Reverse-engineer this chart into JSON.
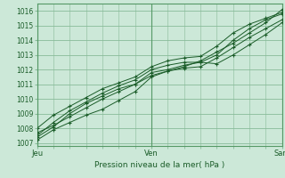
{
  "title": "",
  "xlabel": "Pression niveau de la mer( hPa )",
  "ylabel": "",
  "bg_color": "#cce8d8",
  "grid_color": "#88bb99",
  "line_color": "#1a5c28",
  "marker_color": "#1a5c28",
  "yticks": [
    1007,
    1008,
    1009,
    1010,
    1011,
    1012,
    1013,
    1014,
    1015,
    1016
  ],
  "ylim": [
    1006.8,
    1016.5
  ],
  "xlim": [
    0,
    90
  ],
  "day_ticks": [
    0,
    42,
    90
  ],
  "day_labels": [
    "Jeu",
    "Ven",
    "Sam"
  ],
  "series": [
    [
      0,
      1007.2,
      6,
      1007.9,
      12,
      1008.4,
      18,
      1008.9,
      24,
      1009.3,
      30,
      1009.9,
      36,
      1010.5,
      42,
      1011.5,
      48,
      1011.9,
      54,
      1012.2,
      60,
      1012.6,
      66,
      1013.2,
      72,
      1013.8,
      78,
      1014.5,
      84,
      1015.2,
      90,
      1016.1
    ],
    [
      0,
      1007.7,
      6,
      1008.2,
      12,
      1008.8,
      18,
      1009.4,
      24,
      1010.0,
      30,
      1010.5,
      36,
      1011.0,
      42,
      1011.8,
      48,
      1012.0,
      54,
      1012.3,
      60,
      1012.5,
      66,
      1013.0,
      72,
      1014.0,
      78,
      1014.8,
      84,
      1015.4,
      90,
      1015.8
    ],
    [
      0,
      1007.5,
      6,
      1008.4,
      12,
      1009.2,
      18,
      1009.8,
      24,
      1010.4,
      30,
      1010.9,
      36,
      1011.3,
      42,
      1012.0,
      48,
      1012.3,
      54,
      1012.5,
      60,
      1012.5,
      66,
      1012.4,
      72,
      1013.0,
      78,
      1013.7,
      84,
      1014.4,
      90,
      1015.2
    ],
    [
      0,
      1008.0,
      6,
      1008.9,
      12,
      1009.5,
      18,
      1010.1,
      24,
      1010.7,
      30,
      1011.1,
      36,
      1011.5,
      42,
      1012.2,
      48,
      1012.6,
      54,
      1012.8,
      60,
      1012.9,
      66,
      1013.6,
      72,
      1014.5,
      78,
      1015.1,
      84,
      1015.5,
      90,
      1015.9
    ],
    [
      0,
      1007.4,
      6,
      1008.1,
      12,
      1009.0,
      18,
      1009.7,
      24,
      1010.2,
      30,
      1010.7,
      36,
      1011.0,
      42,
      1011.6,
      48,
      1011.9,
      54,
      1012.1,
      60,
      1012.2,
      66,
      1012.8,
      72,
      1013.5,
      78,
      1014.2,
      84,
      1014.8,
      90,
      1015.4
    ]
  ]
}
